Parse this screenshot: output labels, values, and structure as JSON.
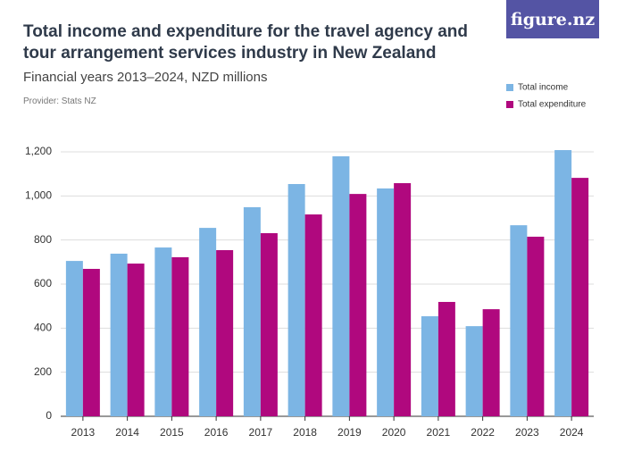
{
  "logo": "figure.nz",
  "chart_data": {
    "type": "bar",
    "title": "Total income and expenditure for the travel agency and tour arrangement services industry in New Zealand",
    "subtitle": "Financial years 2013–2024, NZD millions",
    "provider": "Provider: Stats NZ",
    "categories": [
      "2013",
      "2014",
      "2015",
      "2016",
      "2017",
      "2018",
      "2019",
      "2020",
      "2021",
      "2022",
      "2023",
      "2024"
    ],
    "series": [
      {
        "name": "Total income",
        "color": "#7cb5e4",
        "values": [
          705,
          738,
          766,
          855,
          949,
          1054,
          1180,
          1034,
          454,
          409,
          867,
          1208
        ]
      },
      {
        "name": "Total expenditure",
        "color": "#b0087e",
        "values": [
          669,
          693,
          722,
          754,
          831,
          916,
          1009,
          1058,
          519,
          486,
          815,
          1082
        ]
      }
    ],
    "ylim": [
      0,
      1200
    ],
    "yticks": [
      0,
      200,
      400,
      600,
      800,
      {
        "value": 1000,
        "label": "1,000"
      },
      {
        "value": 1200,
        "label": "1,200"
      }
    ],
    "grid": true,
    "legend": "top-right"
  }
}
